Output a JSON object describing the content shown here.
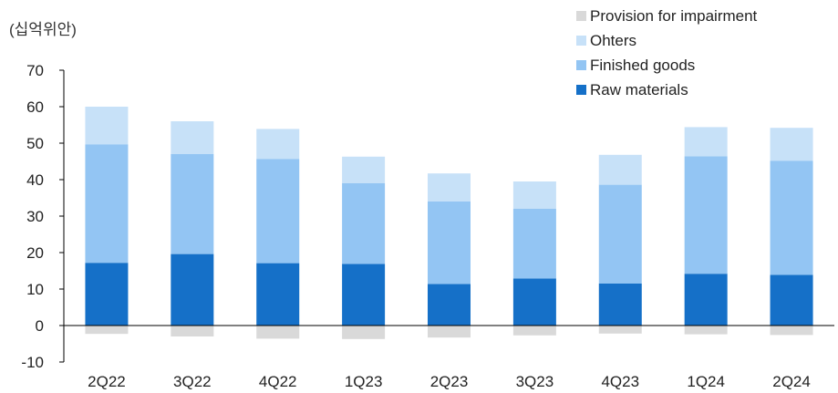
{
  "chart_data": {
    "type": "bar",
    "stacked": true,
    "unit_label": "(십억위안)",
    "categories": [
      "2Q22",
      "3Q22",
      "4Q22",
      "1Q23",
      "2Q23",
      "3Q23",
      "4Q23",
      "1Q24",
      "2Q24"
    ],
    "series": [
      {
        "name": "Raw materials",
        "color": "#1570c8",
        "values": [
          17.2,
          19.6,
          17.1,
          16.9,
          11.4,
          12.9,
          11.5,
          14.2,
          13.9
        ]
      },
      {
        "name": "Finished goods",
        "color": "#93c5f3",
        "values": [
          32.5,
          27.4,
          28.6,
          22.1,
          22.6,
          19.1,
          27.1,
          32.2,
          31.3
        ]
      },
      {
        "name": "Ohters",
        "color": "#c7e1f8",
        "values": [
          10.3,
          9.0,
          8.2,
          7.3,
          7.7,
          7.5,
          8.2,
          8.0,
          9.0
        ]
      },
      {
        "name": "Provision for impairment",
        "color": "#d9d9d9",
        "values": [
          -2.3,
          -3.0,
          -3.6,
          -3.7,
          -3.3,
          -2.7,
          -2.2,
          -2.4,
          -2.6
        ]
      }
    ],
    "legend_order": [
      "Provision for impairment",
      "Ohters",
      "Finished goods",
      "Raw materials"
    ],
    "ylim": [
      -10,
      70
    ],
    "yticks": [
      -10,
      0,
      10,
      20,
      30,
      40,
      50,
      60,
      70
    ],
    "legend_position": "top-right"
  }
}
